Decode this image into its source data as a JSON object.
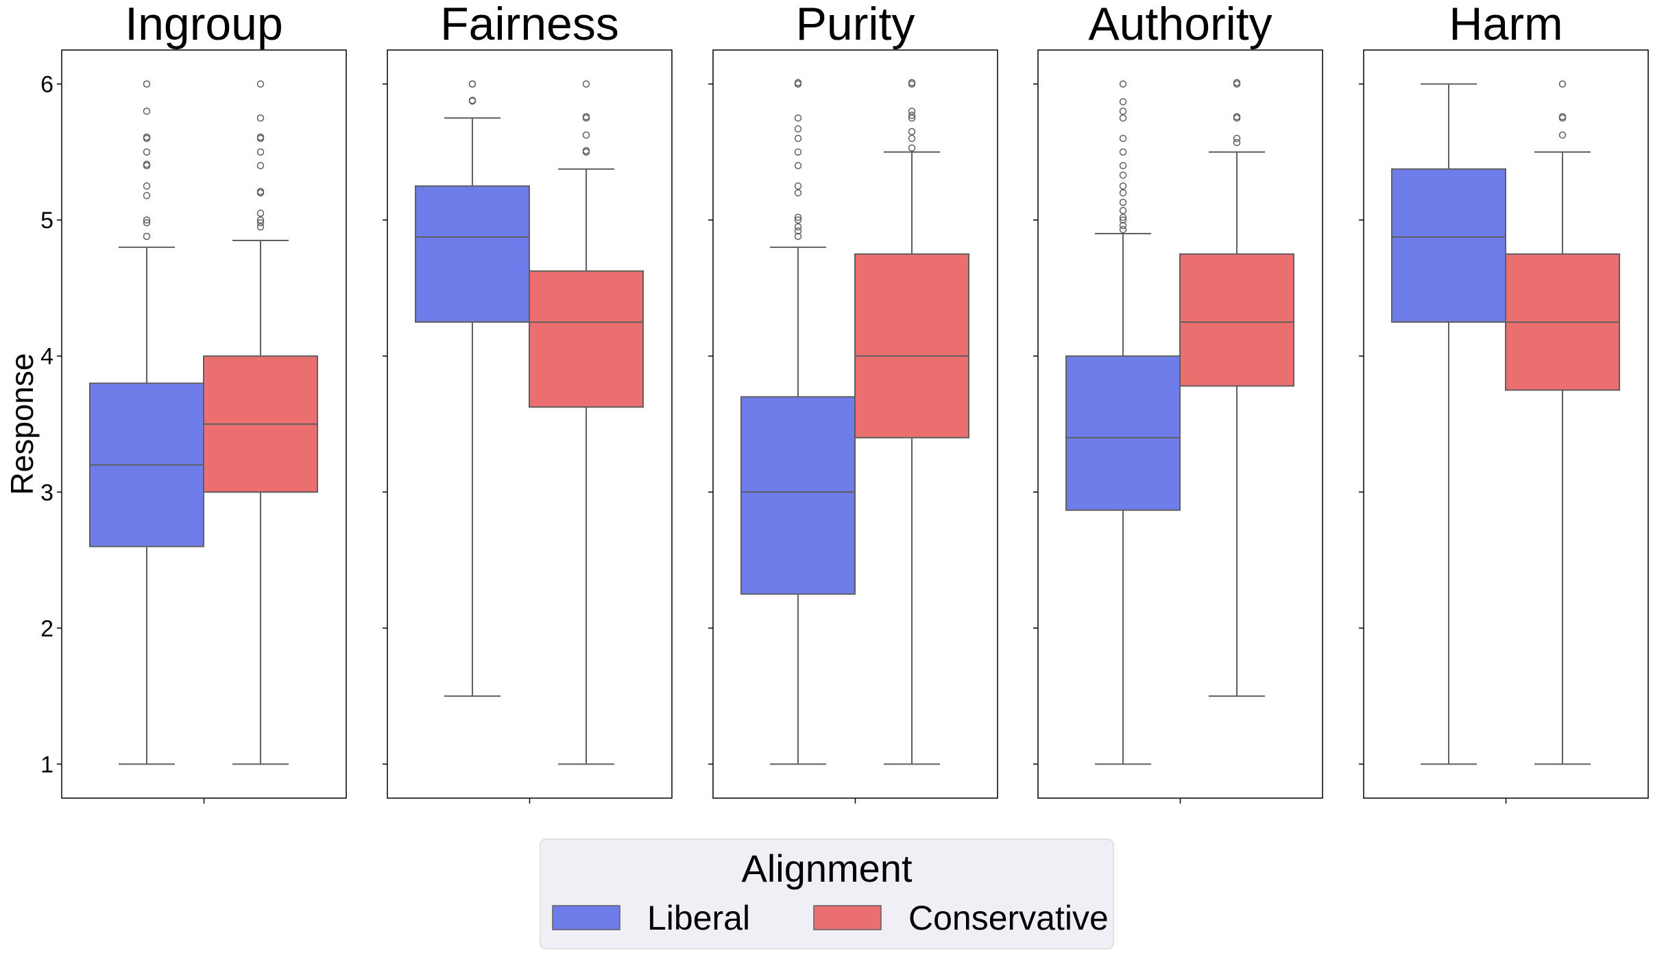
{
  "chart_data": {
    "type": "box",
    "ylabel": "Response",
    "ylim": [
      0.75,
      6.25
    ],
    "yticks": [
      1,
      2,
      3,
      4,
      5,
      6
    ],
    "series": [
      {
        "name": "Liberal",
        "color": "#6f7deb"
      },
      {
        "name": "Conservative",
        "color": "#eb6f6f"
      }
    ],
    "legend": {
      "title": "Alignment",
      "position": "bottom-center"
    },
    "panels": [
      {
        "title": "Ingroup",
        "boxes": [
          {
            "series": "Liberal",
            "whisker_low": 1.0,
            "q1": 2.6,
            "median": 3.2,
            "q3": 3.8,
            "whisker_high": 4.8,
            "outliers": [
              4.88,
              4.98,
              5.0,
              5.18,
              5.25,
              5.4,
              5.41,
              5.5,
              5.6,
              5.61,
              5.8,
              6.0
            ]
          },
          {
            "series": "Conservative",
            "whisker_low": 1.0,
            "q1": 3.0,
            "median": 3.5,
            "q3": 4.0,
            "whisker_high": 4.85,
            "outliers": [
              4.95,
              4.98,
              5.0,
              5.05,
              5.2,
              5.21,
              5.4,
              5.5,
              5.6,
              5.61,
              5.75,
              6.0
            ]
          }
        ]
      },
      {
        "title": "Fairness",
        "boxes": [
          {
            "series": "Liberal",
            "whisker_low": 1.5,
            "q1": 4.25,
            "median": 4.875,
            "q3": 5.25,
            "whisker_high": 5.75,
            "outliers": [
              5.875,
              5.88,
              6.0,
              6.0
            ]
          },
          {
            "series": "Conservative",
            "whisker_low": 1.0,
            "q1": 3.625,
            "median": 4.25,
            "q3": 4.625,
            "whisker_high": 5.375,
            "outliers": [
              5.5,
              5.51,
              5.625,
              5.75,
              5.76,
              6.0
            ]
          }
        ]
      },
      {
        "title": "Purity",
        "boxes": [
          {
            "series": "Liberal",
            "whisker_low": 1.0,
            "q1": 2.25,
            "median": 3.0,
            "q3": 3.7,
            "whisker_high": 4.8,
            "outliers": [
              4.88,
              4.92,
              4.95,
              5.0,
              5.02,
              5.2,
              5.25,
              5.4,
              5.5,
              5.6,
              5.67,
              5.75,
              6.0,
              6.01
            ]
          },
          {
            "series": "Conservative",
            "whisker_low": 1.0,
            "q1": 3.4,
            "median": 4.0,
            "q3": 4.75,
            "whisker_high": 5.5,
            "outliers": [
              5.53,
              5.6,
              5.65,
              5.75,
              5.77,
              5.8,
              6.0,
              6.01
            ]
          }
        ]
      },
      {
        "title": "Authority",
        "boxes": [
          {
            "series": "Liberal",
            "whisker_low": 1.0,
            "q1": 2.867,
            "median": 3.4,
            "q3": 4.0,
            "whisker_high": 4.9,
            "outliers": [
              4.93,
              4.96,
              5.0,
              5.02,
              5.07,
              5.13,
              5.2,
              5.25,
              5.33,
              5.4,
              5.5,
              5.6,
              5.75,
              5.8,
              5.87,
              6.0
            ]
          },
          {
            "series": "Conservative",
            "whisker_low": 1.5,
            "q1": 3.78,
            "median": 4.25,
            "q3": 4.75,
            "whisker_high": 5.5,
            "outliers": [
              5.57,
              5.6,
              5.75,
              5.76,
              6.0,
              6.01
            ]
          }
        ]
      },
      {
        "title": "Harm",
        "boxes": [
          {
            "series": "Liberal",
            "whisker_low": 1.0,
            "q1": 4.25,
            "median": 4.875,
            "q3": 5.375,
            "whisker_high": 6.0,
            "outliers": []
          },
          {
            "series": "Conservative",
            "whisker_low": 1.0,
            "q1": 3.75,
            "median": 4.25,
            "q3": 4.75,
            "whisker_high": 5.5,
            "outliers": [
              5.625,
              5.75,
              5.76,
              6.0
            ]
          }
        ]
      }
    ]
  }
}
